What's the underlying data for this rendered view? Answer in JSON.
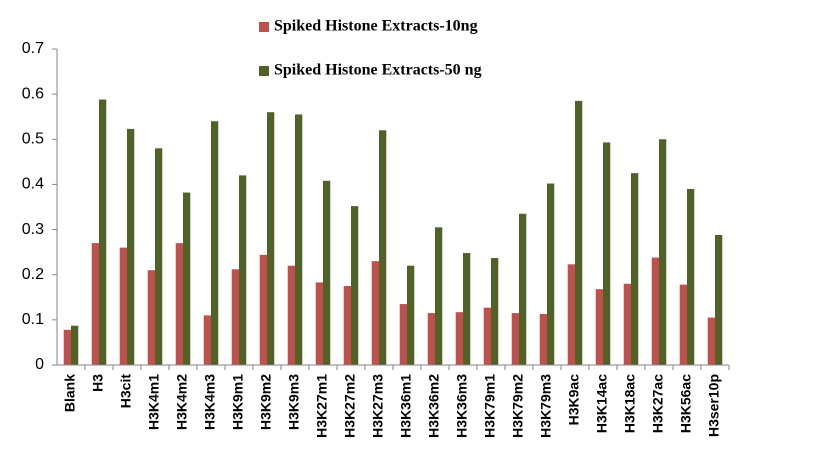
{
  "chart_data": {
    "type": "bar",
    "categories": [
      "Blank",
      "H3",
      "H3cit",
      "H3K4m1",
      "H3K4m2",
      "H3K4m3",
      "H3K9m1",
      "H3K9m2",
      "H3K9m3",
      "H3K27m1",
      "H3K27m2",
      "H3K27m3",
      "H3K36m1",
      "H3K36m2",
      "H3K36m3",
      "H3K79m1",
      "H3K79m2",
      "H3K79m3",
      "H3K9ac",
      "H3K14ac",
      "H3K18ac",
      "H3K27ac",
      "H3K56ac",
      "H3ser10p"
    ],
    "series": [
      {
        "name": "Spiked Histone Extracts-10ng",
        "color": "#c0504d",
        "values": [
          0.078,
          0.27,
          0.26,
          0.21,
          0.27,
          0.11,
          0.212,
          0.244,
          0.22,
          0.183,
          0.175,
          0.23,
          0.135,
          0.115,
          0.117,
          0.127,
          0.115,
          0.113,
          0.223,
          0.168,
          0.18,
          0.238,
          0.178,
          0.105
        ]
      },
      {
        "name": "Spiked Histone Extracts-50 ng",
        "color": "#4f6228",
        "values": [
          0.087,
          0.588,
          0.523,
          0.48,
          0.382,
          0.54,
          0.42,
          0.56,
          0.555,
          0.408,
          0.352,
          0.52,
          0.22,
          0.305,
          0.248,
          0.237,
          0.335,
          0.402,
          0.585,
          0.493,
          0.425,
          0.5,
          0.39,
          0.288
        ]
      }
    ],
    "ylim": [
      0,
      0.7
    ],
    "yticks": [
      0,
      0.1,
      0.2,
      0.3,
      0.4,
      0.5,
      0.6,
      0.7
    ],
    "grid": false,
    "legend": "top"
  }
}
